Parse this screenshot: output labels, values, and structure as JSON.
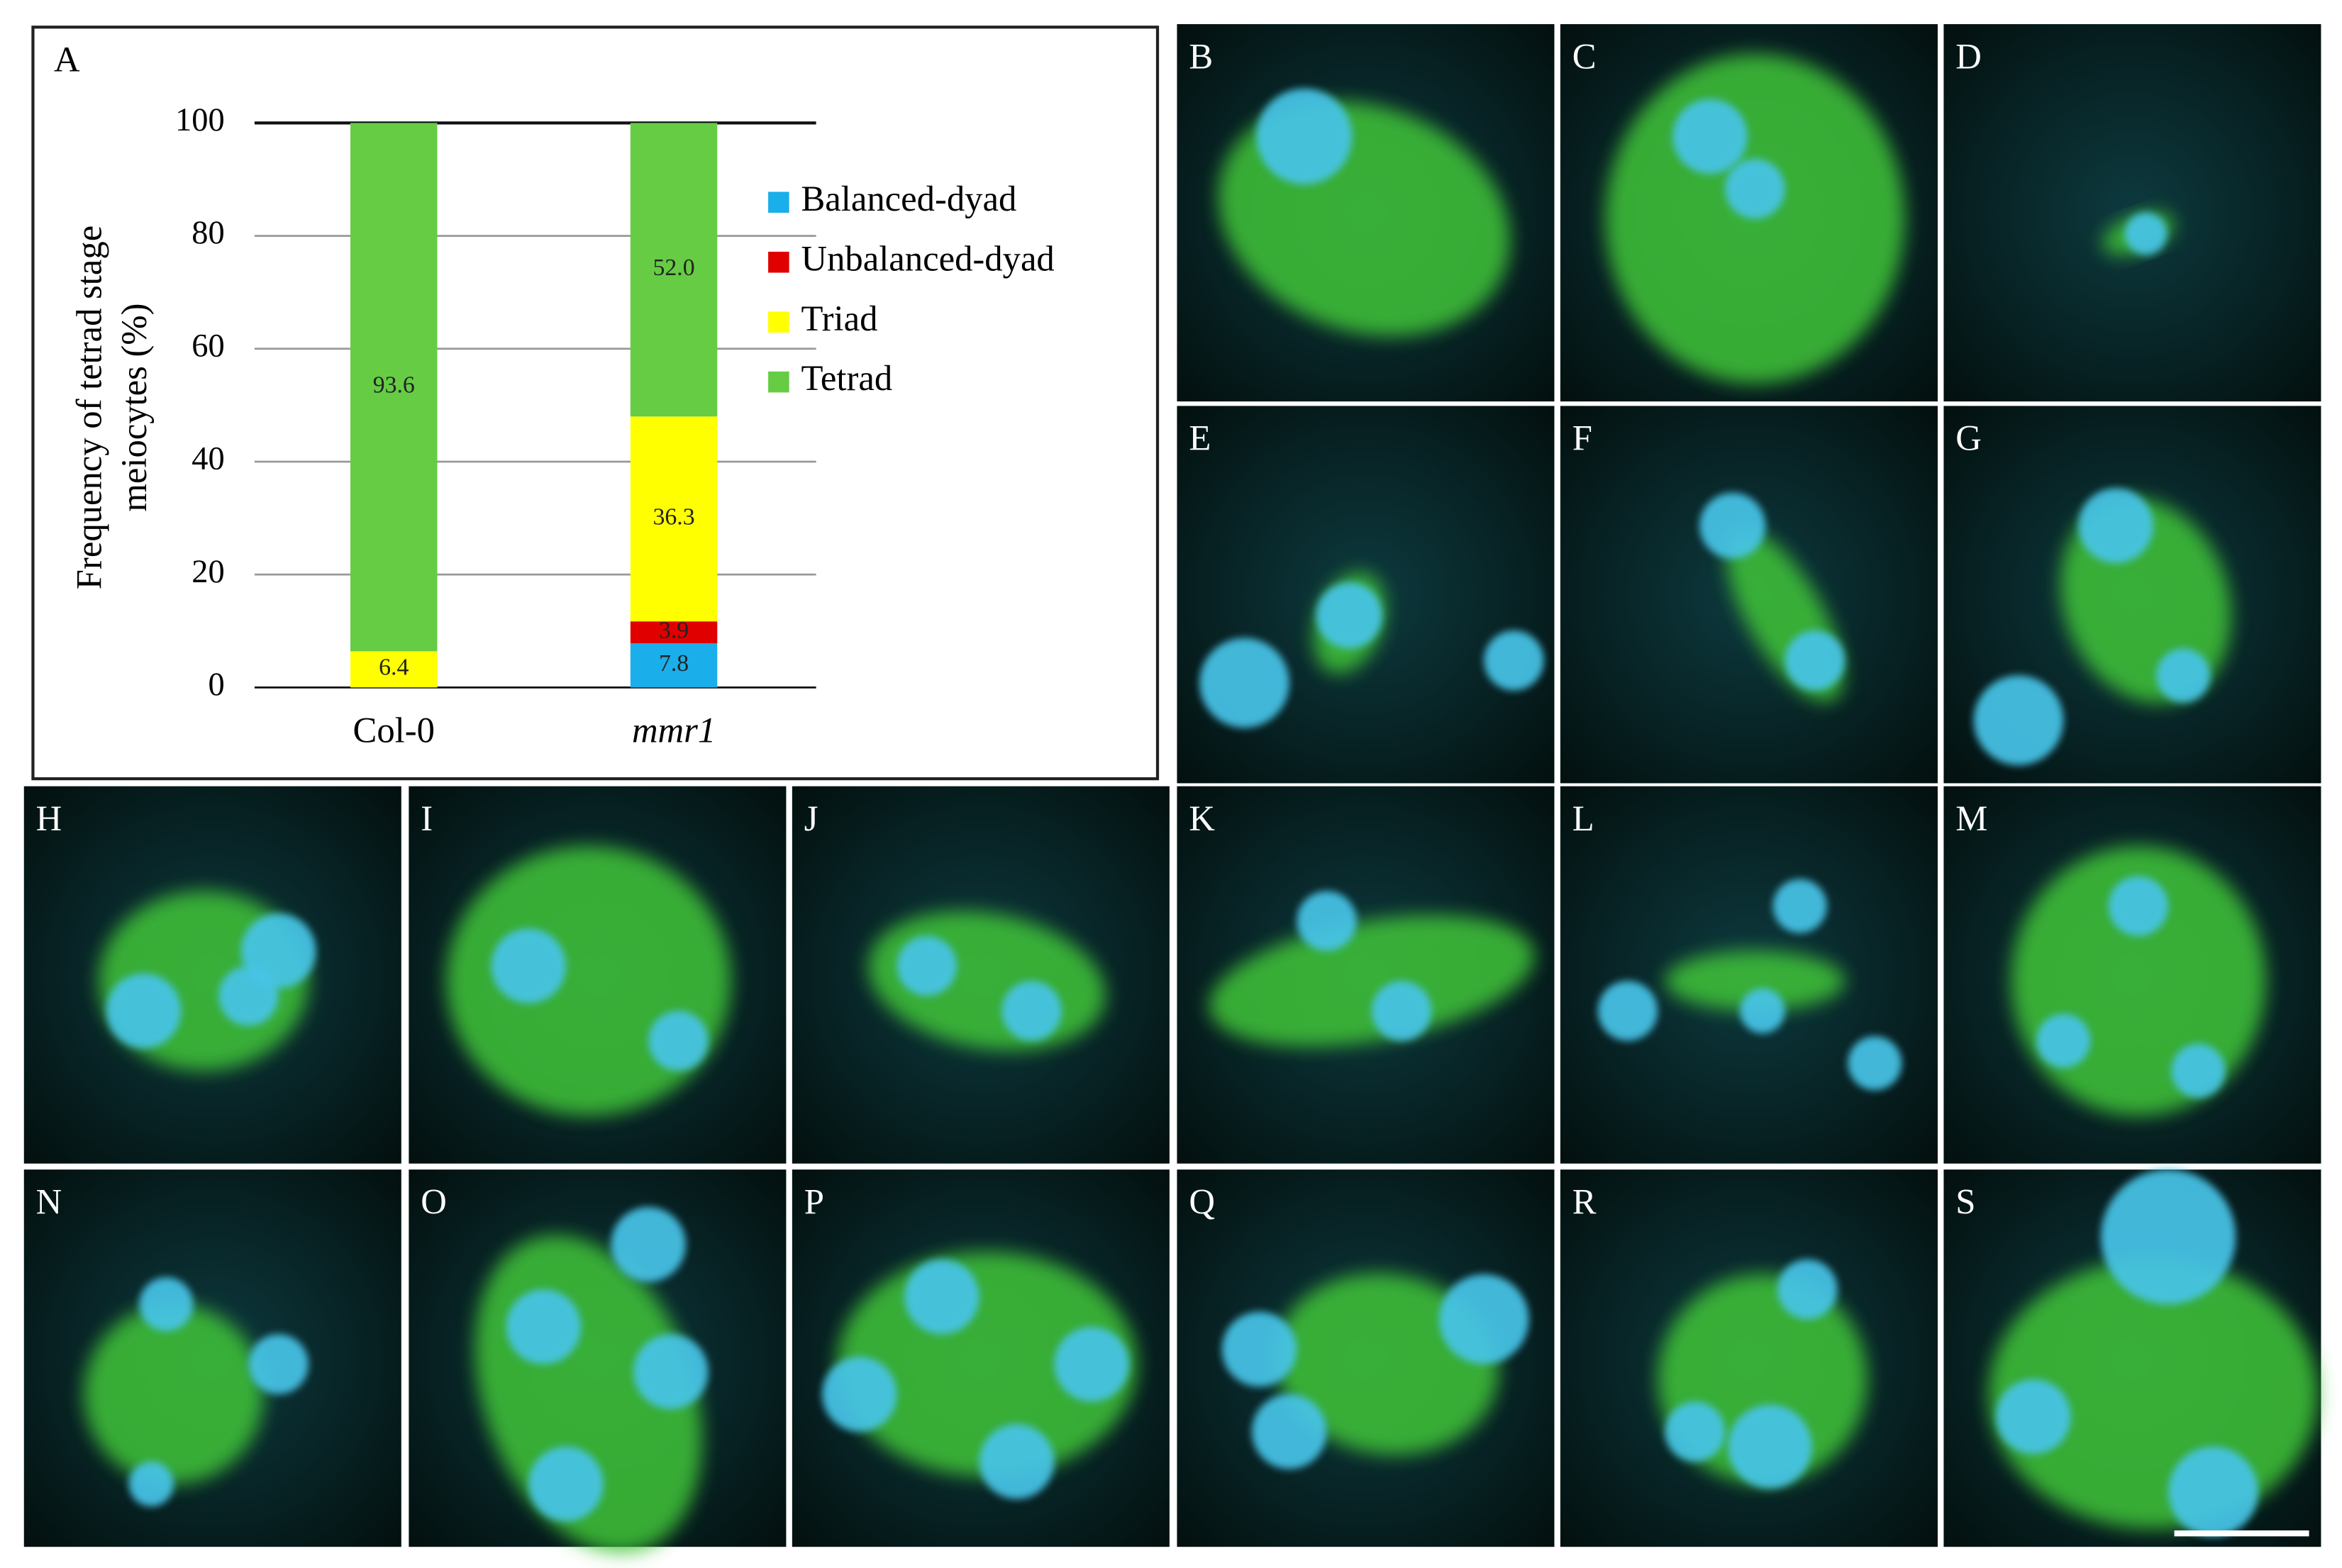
{
  "chart_data": {
    "type": "stacked-bar",
    "panel_label": "A",
    "y_label": [
      "Frequency of tetrad stage",
      "meiocytes (%)"
    ],
    "categories": [
      "Col-0",
      "mmr1"
    ],
    "series": [
      {
        "name": "Balanced-dyad",
        "color": "#1aaeea",
        "values": [
          0,
          7.8
        ]
      },
      {
        "name": "Unbalanced-dyad",
        "color": "#e00000",
        "values": [
          0,
          3.9
        ]
      },
      {
        "name": "Triad",
        "color": "#ffff00",
        "values": [
          6.4,
          36.3
        ]
      },
      {
        "name": "Tetrad",
        "color": "#66cc44",
        "values": [
          93.6,
          52.0
        ],
        "value_labels": [
          "93.6",
          "52.0"
        ]
      }
    ],
    "ylim": [
      0,
      100
    ],
    "yticks": [
      0,
      20,
      40,
      60,
      80,
      100
    ],
    "grid": true,
    "legend": "right"
  },
  "panels": [
    "B",
    "C",
    "D",
    "E",
    "F",
    "G",
    "H",
    "I",
    "J",
    "K",
    "L",
    "M",
    "N",
    "O",
    "P",
    "Q",
    "R",
    "S"
  ]
}
